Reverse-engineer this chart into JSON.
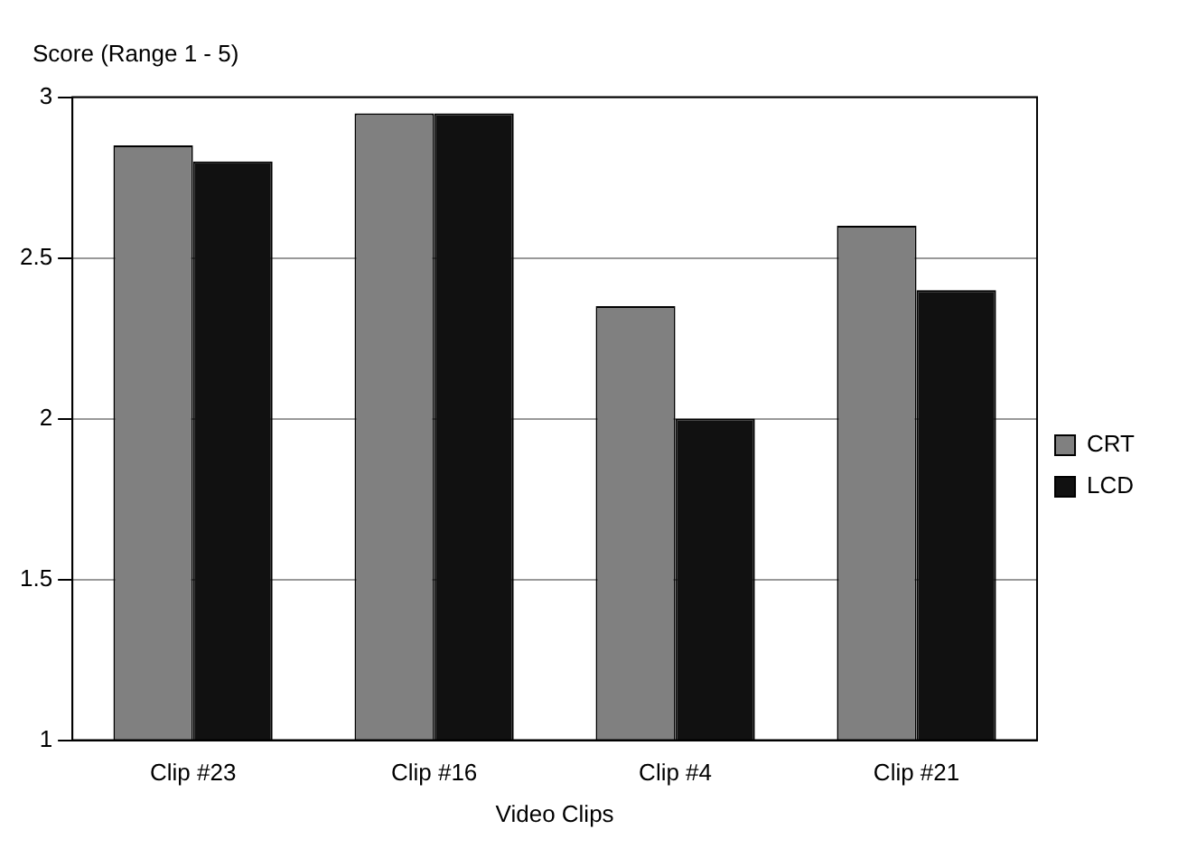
{
  "chart_data": {
    "type": "bar",
    "xlabel": "Video Clips",
    "ylabel": "Score (Range 1 - 5)",
    "categories": [
      "Clip #23",
      "Clip #16",
      "Clip #4",
      "Clip #21"
    ],
    "series": [
      {
        "name": "CRT",
        "color": "#808080",
        "values": [
          2.85,
          2.95,
          2.35,
          2.6
        ]
      },
      {
        "name": "LCD",
        "color": "#111111",
        "values": [
          2.8,
          2.95,
          2.0,
          2.4
        ]
      }
    ],
    "ylim": [
      1,
      3
    ],
    "yticks": [
      1,
      1.5,
      2,
      2.5,
      3
    ],
    "grid": "y",
    "legend": "right"
  }
}
